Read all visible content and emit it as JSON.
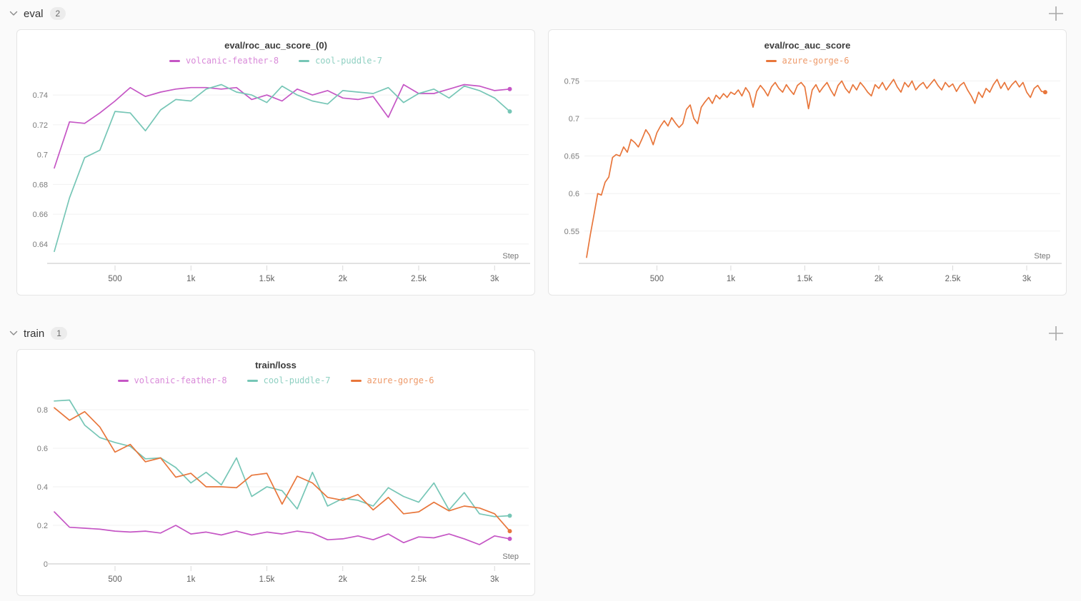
{
  "colors": {
    "page_bg": "#fafafa",
    "panel_bg": "#ffffff",
    "panel_border": "#e5e5e5",
    "grid": "#f1f1f1",
    "axis": "#e2e2e2",
    "tick_mark": "#d9d9d9",
    "y_tick_label": "#7b7b7b",
    "x_tick_label": "#5f5f5f",
    "step_label": "#777777",
    "title_text": "#3b3b3b",
    "icon": "#9e9e9e"
  },
  "runs": {
    "volcanic-feather-8": {
      "line": "#c556c5",
      "text": "#d98ad9"
    },
    "cool-puddle-7": {
      "line": "#76c6b6",
      "text": "#8fd0c2"
    },
    "azure-gorge-6": {
      "line": "#e8763b",
      "text": "#ee9a6a"
    }
  },
  "sections": [
    {
      "label": "eval",
      "count": "2"
    },
    {
      "label": "train",
      "count": "1"
    }
  ],
  "chart_data": [
    {
      "type": "line",
      "title": "eval/roc_auc_score_(0)",
      "xlabel": "Step",
      "legend_position": "top",
      "grid": true,
      "xlim": [
        100,
        3140
      ],
      "ylim": [
        0.627,
        0.753
      ],
      "yticks": [
        {
          "v": 0.64,
          "label": "0.64"
        },
        {
          "v": 0.66,
          "label": "0.66"
        },
        {
          "v": 0.68,
          "label": "0.68"
        },
        {
          "v": 0.7,
          "label": "0.7"
        },
        {
          "v": 0.72,
          "label": "0.72"
        },
        {
          "v": 0.74,
          "label": "0.74"
        }
      ],
      "xticks": [
        {
          "v": 500,
          "label": "500"
        },
        {
          "v": 1000,
          "label": "1k"
        },
        {
          "v": 1500,
          "label": "1.5k"
        },
        {
          "v": 2000,
          "label": "2k"
        },
        {
          "v": 2500,
          "label": "2.5k"
        },
        {
          "v": 3000,
          "label": "3k"
        }
      ],
      "x": [
        100,
        200,
        300,
        400,
        500,
        600,
        700,
        800,
        900,
        1000,
        1100,
        1200,
        1300,
        1400,
        1500,
        1600,
        1700,
        1800,
        1900,
        2000,
        2100,
        2200,
        2300,
        2400,
        2500,
        2600,
        2700,
        2800,
        2900,
        3000,
        3100
      ],
      "series": [
        {
          "name": "volcanic-feather-8",
          "values": [
            0.691,
            0.722,
            0.721,
            0.728,
            0.736,
            0.745,
            0.739,
            0.742,
            0.744,
            0.745,
            0.745,
            0.744,
            0.745,
            0.737,
            0.74,
            0.736,
            0.744,
            0.74,
            0.743,
            0.738,
            0.737,
            0.739,
            0.725,
            0.747,
            0.741,
            0.741,
            0.744,
            0.747,
            0.746,
            0.743,
            0.744
          ]
        },
        {
          "name": "cool-puddle-7",
          "values": [
            0.635,
            0.671,
            0.698,
            0.703,
            0.729,
            0.728,
            0.716,
            0.73,
            0.737,
            0.736,
            0.744,
            0.747,
            0.742,
            0.74,
            0.735,
            0.746,
            0.74,
            0.736,
            0.734,
            0.743,
            0.742,
            0.741,
            0.745,
            0.735,
            0.741,
            0.744,
            0.738,
            0.746,
            0.743,
            0.738,
            0.729
          ]
        }
      ]
    },
    {
      "type": "line",
      "title": "eval/roc_auc_score",
      "xlabel": "Step",
      "legend_position": "top",
      "grid": true,
      "xlim": [
        20,
        3140
      ],
      "ylim": [
        0.507,
        0.757
      ],
      "yticks": [
        {
          "v": 0.55,
          "label": "0.55"
        },
        {
          "v": 0.6,
          "label": "0.6"
        },
        {
          "v": 0.65,
          "label": "0.65"
        },
        {
          "v": 0.7,
          "label": "0.7"
        },
        {
          "v": 0.75,
          "label": "0.75"
        }
      ],
      "xticks": [
        {
          "v": 500,
          "label": "500"
        },
        {
          "v": 1000,
          "label": "1k"
        },
        {
          "v": 1500,
          "label": "1.5k"
        },
        {
          "v": 2000,
          "label": "2k"
        },
        {
          "v": 2500,
          "label": "2.5k"
        },
        {
          "v": 3000,
          "label": "3k"
        }
      ],
      "x": [
        25,
        50,
        75,
        100,
        125,
        150,
        175,
        200,
        225,
        250,
        275,
        300,
        325,
        350,
        375,
        400,
        425,
        450,
        475,
        500,
        525,
        550,
        575,
        600,
        625,
        650,
        675,
        700,
        725,
        750,
        775,
        800,
        825,
        850,
        875,
        900,
        925,
        950,
        975,
        1000,
        1025,
        1050,
        1075,
        1100,
        1125,
        1150,
        1175,
        1200,
        1225,
        1250,
        1275,
        1300,
        1325,
        1350,
        1375,
        1400,
        1425,
        1450,
        1475,
        1500,
        1525,
        1550,
        1575,
        1600,
        1625,
        1650,
        1675,
        1700,
        1725,
        1750,
        1775,
        1800,
        1825,
        1850,
        1875,
        1900,
        1925,
        1950,
        1975,
        2000,
        2025,
        2050,
        2075,
        2100,
        2125,
        2150,
        2175,
        2200,
        2225,
        2250,
        2275,
        2300,
        2325,
        2350,
        2375,
        2400,
        2425,
        2450,
        2475,
        2500,
        2525,
        2550,
        2575,
        2600,
        2625,
        2650,
        2675,
        2700,
        2725,
        2750,
        2775,
        2800,
        2825,
        2850,
        2875,
        2900,
        2925,
        2950,
        2975,
        3000,
        3025,
        3050,
        3075,
        3100,
        3125
      ],
      "series": [
        {
          "name": "azure-gorge-6",
          "values": [
            0.515,
            0.545,
            0.572,
            0.6,
            0.598,
            0.615,
            0.622,
            0.648,
            0.652,
            0.65,
            0.662,
            0.655,
            0.672,
            0.668,
            0.662,
            0.673,
            0.685,
            0.678,
            0.665,
            0.681,
            0.69,
            0.697,
            0.69,
            0.701,
            0.694,
            0.688,
            0.693,
            0.712,
            0.718,
            0.7,
            0.693,
            0.715,
            0.722,
            0.728,
            0.72,
            0.731,
            0.726,
            0.733,
            0.728,
            0.735,
            0.732,
            0.738,
            0.73,
            0.741,
            0.734,
            0.715,
            0.736,
            0.744,
            0.738,
            0.73,
            0.742,
            0.748,
            0.74,
            0.735,
            0.745,
            0.738,
            0.732,
            0.744,
            0.748,
            0.742,
            0.713,
            0.738,
            0.745,
            0.735,
            0.742,
            0.748,
            0.738,
            0.73,
            0.744,
            0.75,
            0.74,
            0.734,
            0.745,
            0.738,
            0.748,
            0.742,
            0.735,
            0.73,
            0.745,
            0.74,
            0.748,
            0.738,
            0.745,
            0.752,
            0.742,
            0.735,
            0.748,
            0.742,
            0.75,
            0.738,
            0.744,
            0.748,
            0.74,
            0.746,
            0.752,
            0.744,
            0.738,
            0.748,
            0.742,
            0.746,
            0.736,
            0.744,
            0.748,
            0.738,
            0.73,
            0.72,
            0.735,
            0.728,
            0.74,
            0.735,
            0.745,
            0.752,
            0.74,
            0.748,
            0.738,
            0.745,
            0.75,
            0.742,
            0.748,
            0.735,
            0.728,
            0.74,
            0.744,
            0.736,
            0.735
          ]
        }
      ]
    },
    {
      "type": "line",
      "title": "train/loss",
      "xlabel": "Step",
      "legend_position": "top",
      "grid": true,
      "xlim": [
        100,
        3140
      ],
      "ylim": [
        0,
        0.874
      ],
      "yticks": [
        {
          "v": 0,
          "label": "0"
        },
        {
          "v": 0.2,
          "label": "0.2"
        },
        {
          "v": 0.4,
          "label": "0.4"
        },
        {
          "v": 0.6,
          "label": "0.6"
        },
        {
          "v": 0.8,
          "label": "0.8"
        }
      ],
      "xticks": [
        {
          "v": 500,
          "label": "500"
        },
        {
          "v": 1000,
          "label": "1k"
        },
        {
          "v": 1500,
          "label": "1.5k"
        },
        {
          "v": 2000,
          "label": "2k"
        },
        {
          "v": 2500,
          "label": "2.5k"
        },
        {
          "v": 3000,
          "label": "3k"
        }
      ],
      "x": [
        100,
        200,
        300,
        400,
        500,
        600,
        700,
        800,
        900,
        1000,
        1100,
        1200,
        1300,
        1400,
        1500,
        1600,
        1700,
        1800,
        1900,
        2000,
        2100,
        2200,
        2300,
        2400,
        2500,
        2600,
        2700,
        2800,
        2900,
        3000,
        3100
      ],
      "series": [
        {
          "name": "volcanic-feather-8",
          "values": [
            0.27,
            0.19,
            0.185,
            0.18,
            0.17,
            0.165,
            0.17,
            0.16,
            0.2,
            0.155,
            0.165,
            0.15,
            0.17,
            0.15,
            0.165,
            0.155,
            0.17,
            0.16,
            0.125,
            0.13,
            0.145,
            0.125,
            0.155,
            0.11,
            0.14,
            0.135,
            0.155,
            0.13,
            0.1,
            0.145,
            0.13
          ]
        },
        {
          "name": "cool-puddle-7",
          "values": [
            0.845,
            0.85,
            0.72,
            0.655,
            0.63,
            0.61,
            0.545,
            0.55,
            0.5,
            0.42,
            0.475,
            0.41,
            0.55,
            0.35,
            0.4,
            0.38,
            0.285,
            0.475,
            0.3,
            0.34,
            0.33,
            0.3,
            0.395,
            0.35,
            0.32,
            0.42,
            0.28,
            0.37,
            0.26,
            0.245,
            0.25
          ]
        },
        {
          "name": "azure-gorge-6",
          "values": [
            0.81,
            0.745,
            0.79,
            0.71,
            0.58,
            0.62,
            0.53,
            0.55,
            0.45,
            0.47,
            0.4,
            0.4,
            0.395,
            0.46,
            0.47,
            0.31,
            0.455,
            0.42,
            0.345,
            0.33,
            0.36,
            0.28,
            0.345,
            0.26,
            0.27,
            0.32,
            0.275,
            0.3,
            0.29,
            0.26,
            0.17
          ]
        }
      ]
    }
  ]
}
